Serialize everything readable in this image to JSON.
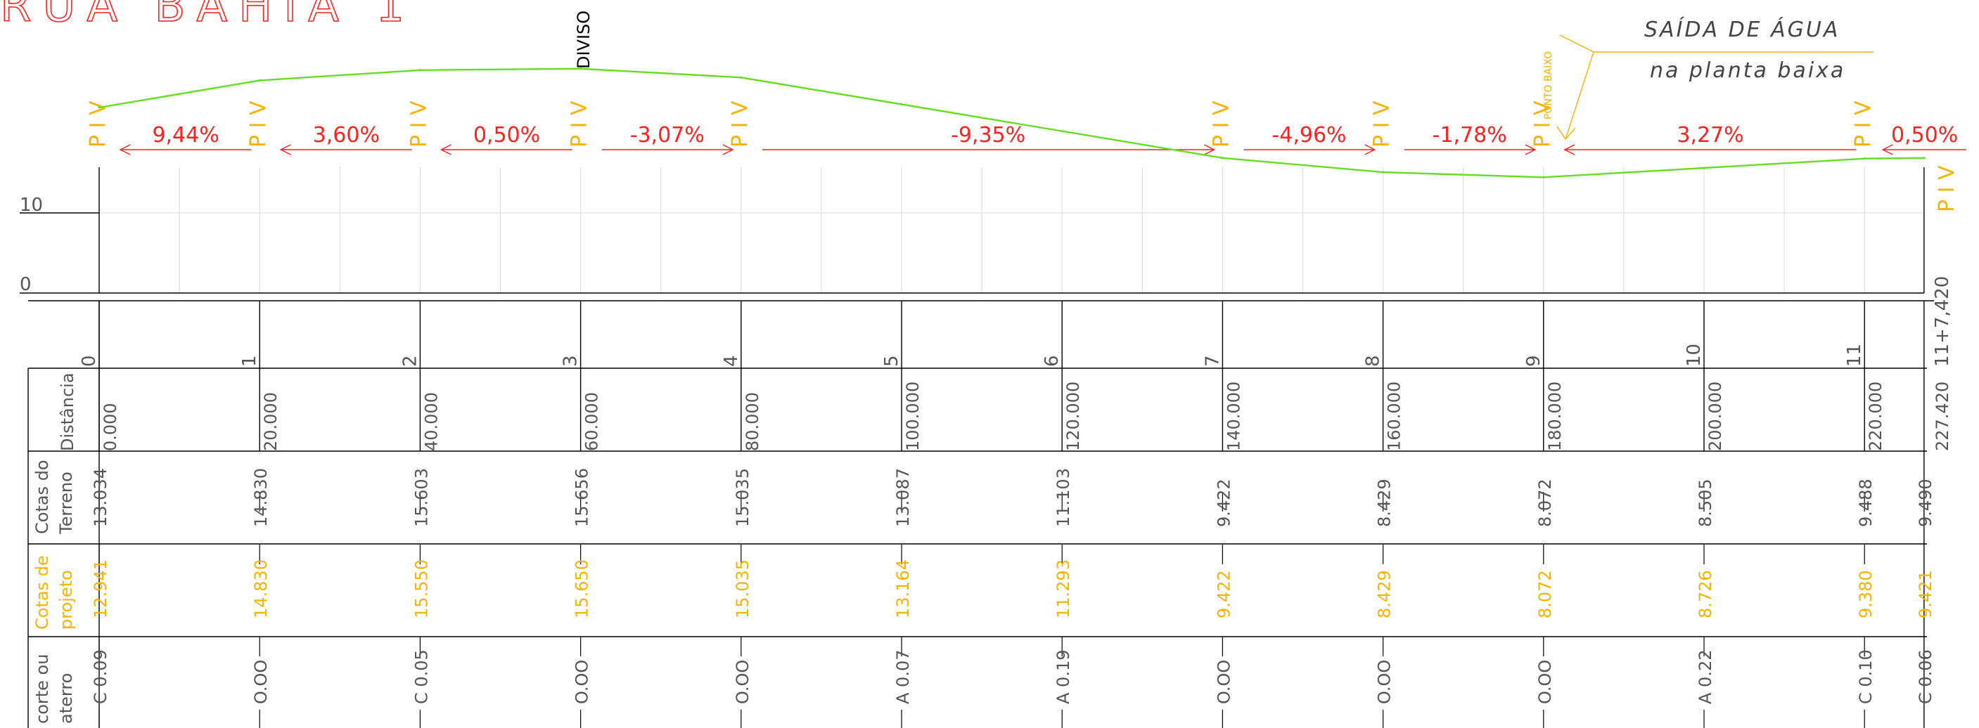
{
  "title": "RUA BAHIA 1",
  "division_label": "DIVISO",
  "water_note": {
    "line1": "SAÍDA DE ÁGUA",
    "line2": "na planta baixa"
  },
  "low_point_label": "PONTO BAIXO",
  "piv_text": "P I V",
  "piv_stations": [
    0,
    2,
    4,
    6,
    8,
    14,
    16,
    18,
    22
  ],
  "grades": [
    {
      "text": "9,44%",
      "from": 0,
      "to": 2,
      "dir": "left"
    },
    {
      "text": "3,60%",
      "from": 2,
      "to": 4,
      "dir": "left"
    },
    {
      "text": "0,50%",
      "from": 4,
      "to": 6,
      "dir": "left"
    },
    {
      "text": "-3,07%",
      "from": 6,
      "to": 8,
      "dir": "right"
    },
    {
      "text": "-9,35%",
      "from": 8,
      "to": 14,
      "dir": "right"
    },
    {
      "text": "-4,96%",
      "from": 14,
      "to": 16,
      "dir": "right"
    },
    {
      "text": "-1,78%",
      "from": 16,
      "to": 18,
      "dir": "right"
    },
    {
      "text": "3,27%",
      "from": 18,
      "to": 22,
      "dir": "left"
    },
    {
      "text": "0,50%",
      "from": 22,
      "to": 23,
      "dir": "left"
    }
  ],
  "y_ticks": [
    "10",
    "0"
  ],
  "colors": {
    "grid": "#d8d8d8",
    "line": "#000000",
    "red": "#ff2020",
    "orange": "#f5b400",
    "profile": "#66dd22"
  },
  "row_labels": {
    "distancia": [
      "Distância"
    ],
    "terreno": [
      "Cotas do",
      "Terreno"
    ],
    "projeto": [
      "Cotas de",
      "projeto"
    ],
    "corte": [
      "corte ou",
      "aterro"
    ]
  },
  "chart_data": {
    "type": "line",
    "x": [
      0,
      20,
      40,
      60,
      80,
      100,
      120,
      140,
      160,
      180,
      200,
      220,
      227.42
    ],
    "series": [
      {
        "values": [
          12.941,
          14.83,
          15.55,
          15.65,
          15.035,
          13.164,
          11.293,
          9.422,
          8.429,
          8.072,
          8.726,
          9.38,
          9.421
        ]
      }
    ],
    "ylim": [
      0,
      19
    ]
  },
  "stations": [
    {
      "label": "0",
      "dist": "0.000",
      "terreno": "13.034",
      "projeto": "12.941",
      "corte": "C 0.09"
    },
    {
      "label": "1",
      "dist": "20.000",
      "terreno": "14.830",
      "projeto": "14.830",
      "corte": "O.OO"
    },
    {
      "label": "2",
      "dist": "40.000",
      "terreno": "15.603",
      "projeto": "15.550",
      "corte": "C 0.05"
    },
    {
      "label": "3",
      "dist": "60.000",
      "terreno": "15.656",
      "projeto": "15.650",
      "corte": "O.OO"
    },
    {
      "label": "4",
      "dist": "80.000",
      "terreno": "15.035",
      "projeto": "15.035",
      "corte": "O.OO"
    },
    {
      "label": "5",
      "dist": "100.000",
      "terreno": "13.087",
      "projeto": "13.164",
      "corte": "A 0.07"
    },
    {
      "label": "6",
      "dist": "120.000",
      "terreno": "11.103",
      "projeto": "11.293",
      "corte": "A 0.19"
    },
    {
      "label": "7",
      "dist": "140.000",
      "terreno": "9.422",
      "projeto": "9.422",
      "corte": "O.OO"
    },
    {
      "label": "8",
      "dist": "160.000",
      "terreno": "8.429",
      "projeto": "8.429",
      "corte": "O.OO"
    },
    {
      "label": "9",
      "dist": "180.000",
      "terreno": "8.072",
      "projeto": "8.072",
      "corte": "O.OO"
    },
    {
      "label": "10",
      "dist": "200.000",
      "terreno": "8.505",
      "projeto": "8.726",
      "corte": "A 0.22"
    },
    {
      "label": "11",
      "dist": "220.000",
      "terreno": "9.488",
      "projeto": "9.380",
      "corte": "C 0.10"
    },
    {
      "label": "11+7,420",
      "dist": "227.420",
      "terreno": "9.490",
      "projeto": "9.421",
      "corte": "C 0.06"
    }
  ]
}
